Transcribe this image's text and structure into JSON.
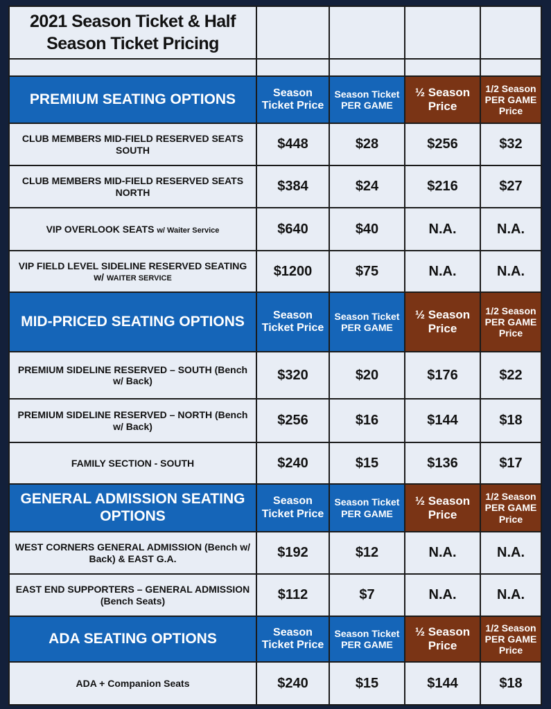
{
  "title_line1": "2021 Season Ticket & Half",
  "title_line2": "Season Ticket Pricing",
  "column_headers": {
    "season_price": "Season Ticket Price",
    "season_per_game": "Season Ticket PER GAME",
    "half_price": "½ Season Price",
    "half_per_game": "1/2 Season PER GAME Price"
  },
  "colors": {
    "blue_header": "#1565b8",
    "brown_header": "#7a3415",
    "background": "#13203a",
    "cell": "#e8edf5"
  },
  "sections": [
    {
      "name": "PREMIUM SEATING OPTIONS",
      "rows": [
        {
          "label": "CLUB MEMBERS MID-FIELD RESERVED SEATS SOUTH",
          "note": "",
          "season": "$448",
          "season_pg": "$28",
          "half": "$256",
          "half_pg": "$32"
        },
        {
          "label": "CLUB MEMBERS MID-FIELD RESERVED SEATS NORTH",
          "note": "",
          "season": "$384",
          "season_pg": "$24",
          "half": "$216",
          "half_pg": "$27"
        },
        {
          "label": "VIP OVERLOOK SEATS",
          "note": "w/ Waiter Service",
          "season": "$640",
          "season_pg": "$40",
          "half": "N.A.",
          "half_pg": "N.A."
        },
        {
          "label": "VIP FIELD LEVEL SIDELINE RESERVED SEATING w/",
          "note": "WAITER SERVICE",
          "season": "$1200",
          "season_pg": "$75",
          "half": "N.A.",
          "half_pg": "N.A."
        }
      ]
    },
    {
      "name": "MID-PRICED SEATING OPTIONS",
      "rows": [
        {
          "label": "PREMIUM SIDELINE RESERVED – SOUTH (Bench w/ Back)",
          "note": "",
          "season": "$320",
          "season_pg": "$20",
          "half": "$176",
          "half_pg": "$22"
        },
        {
          "label": "PREMIUM SIDELINE RESERVED – NORTH (Bench w/ Back)",
          "note": "",
          "season": "$256",
          "season_pg": "$16",
          "half": "$144",
          "half_pg": "$18"
        },
        {
          "label": "FAMILY SECTION - SOUTH",
          "note": "",
          "season": "$240",
          "season_pg": "$15",
          "half": "$136",
          "half_pg": "$17"
        }
      ]
    },
    {
      "name": "GENERAL ADMISSION SEATING OPTIONS",
      "rows": [
        {
          "label": "WEST CORNERS  GENERAL ADMISSION (Bench w/ Back) & EAST G.A.",
          "note": "",
          "season": "$192",
          "season_pg": "$12",
          "half": "N.A.",
          "half_pg": "N.A."
        },
        {
          "label": "EAST END SUPPORTERS – GENERAL ADMISSION (Bench Seats)",
          "note": "",
          "season": "$112",
          "season_pg": "$7",
          "half": "N.A.",
          "half_pg": "N.A."
        }
      ]
    },
    {
      "name": "ADA SEATING OPTIONS",
      "rows": [
        {
          "label": "ADA + Companion Seats",
          "note": "",
          "season": "$240",
          "season_pg": "$15",
          "half": "$144",
          "half_pg": "$18"
        }
      ]
    }
  ]
}
